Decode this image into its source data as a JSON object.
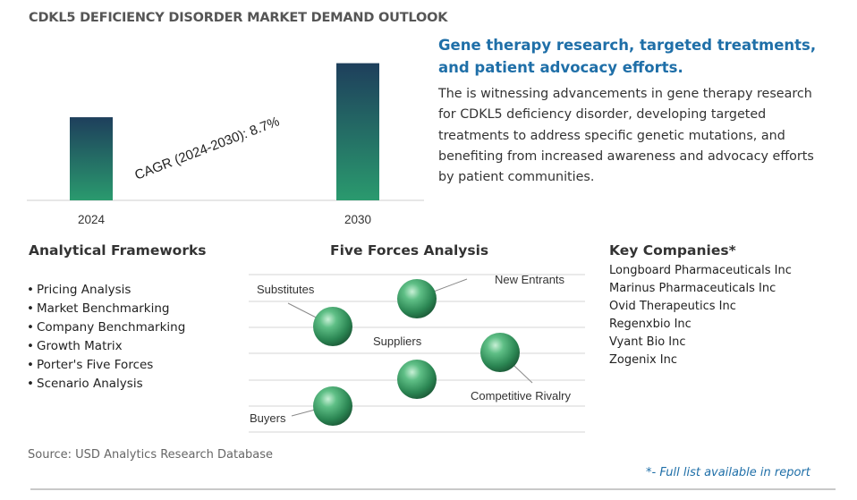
{
  "title": "CDKL5 DEFICIENCY DISORDER MARKET DEMAND OUTLOOK",
  "chart_data": {
    "type": "bar",
    "categories": [
      "2024",
      "2030"
    ],
    "series": [
      {
        "values": [
          1.0,
          1.65
        ]
      }
    ],
    "ylim": [
      0,
      1.7
    ],
    "annotation": "CAGR (2024-2030):   8.7%",
    "colors": {
      "bar_top": "#1e3f5c",
      "bar_bottom": "#2a9a6e",
      "axis": "#cfcfcf"
    }
  },
  "headline": "Gene therapy research, targeted treatments, and patient advocacy efforts.",
  "summary": "The is witnessing advancements in gene therapy research for CDKL5 deficiency disorder, developing targeted treatments to address specific genetic mutations, and benefiting from increased awareness and advocacy efforts by patient communities.",
  "frameworks": {
    "title": "Analytical Frameworks",
    "items": [
      "Pricing Analysis",
      "Market Benchmarking",
      "Company Benchmarking",
      "Growth Matrix",
      "Porter's Five Forces",
      "Scenario Analysis"
    ]
  },
  "five_forces": {
    "title": "Five Forces Analysis",
    "labels": {
      "new_entrants": "New Entrants",
      "substitutes": "Substitutes",
      "suppliers": "Suppliers",
      "competitive_rivalry": "Competitive Rivalry",
      "buyers": "Buyers"
    }
  },
  "companies": {
    "title": "Key Companies*",
    "items": [
      "Longboard Pharmaceuticals Inc",
      "Marinus Pharmaceuticals Inc",
      "Ovid Therapeutics Inc",
      "Regenxbio Inc",
      "Vyant Bio Inc",
      "Zogenix Inc"
    ]
  },
  "source": "Source: USD Analytics Research Database",
  "note": "*- Full list available in report",
  "accent_color": "#1f6fa8"
}
